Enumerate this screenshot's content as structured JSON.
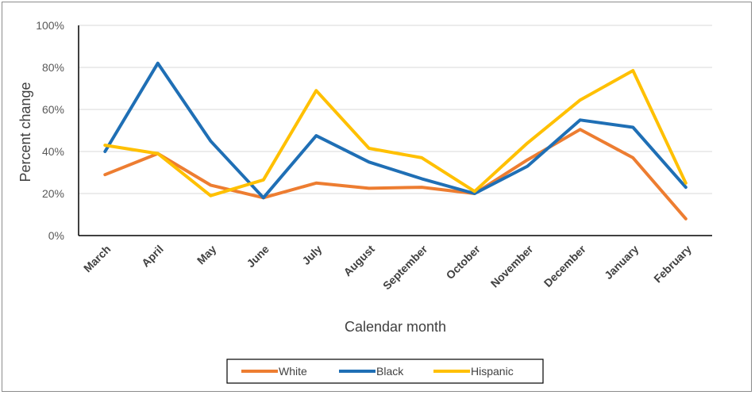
{
  "chart_data": {
    "type": "line",
    "title": "",
    "xlabel": "Calendar month",
    "ylabel": "Percent change",
    "categories": [
      "March",
      "April",
      "May",
      "June",
      "July",
      "August",
      "September",
      "October",
      "November",
      "December",
      "January",
      "February"
    ],
    "ylim": [
      0,
      100
    ],
    "yticks": [
      "0%",
      "20%",
      "40%",
      "60%",
      "80%",
      "100%"
    ],
    "grid": true,
    "legend_position": "bottom",
    "series": [
      {
        "name": "White",
        "color": "#ED7D31",
        "values": [
          29,
          39,
          24,
          18,
          25,
          22.5,
          23,
          20,
          36,
          50.5,
          37,
          8
        ]
      },
      {
        "name": "Black",
        "color": "#1F6FB5",
        "values": [
          40,
          82,
          45,
          18,
          47.5,
          35,
          27,
          20,
          33,
          55,
          51.5,
          23
        ]
      },
      {
        "name": "Hispanic",
        "color": "#FFC000",
        "values": [
          43,
          39,
          19,
          26.5,
          69,
          41.5,
          37,
          21,
          44,
          64.5,
          78.5,
          25
        ]
      }
    ]
  }
}
